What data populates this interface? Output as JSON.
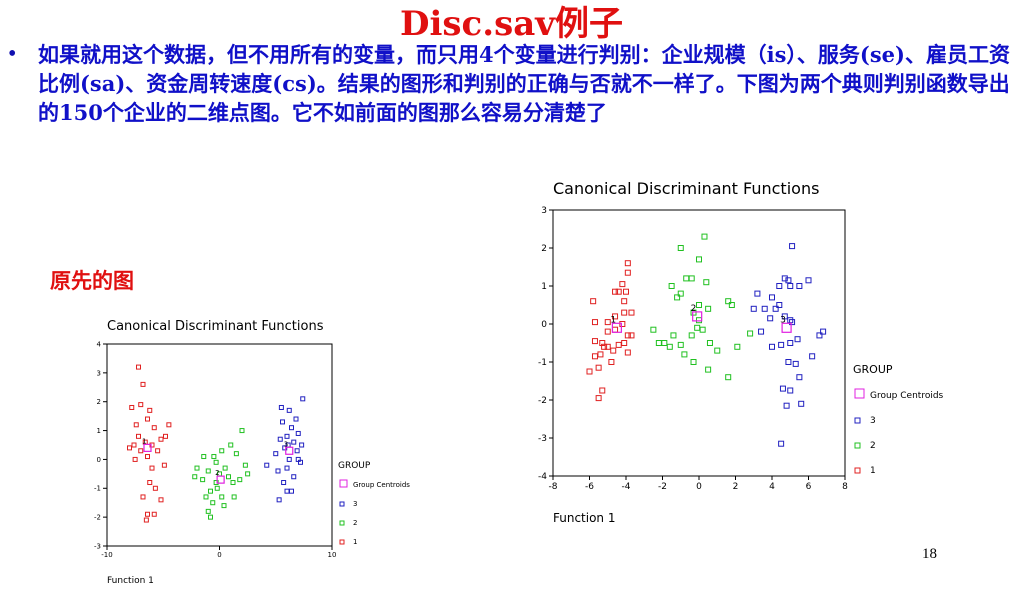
{
  "slide": {
    "title": "Disc.sav例子",
    "bullet": "•",
    "text": "如果就用这个数据，但不用所有的变量，而只用4个变量进行判别：企业规模（is）、服务(se)、雇员工资比例(sa)、资金周转速度(cs)。结果的图形和判别的正确与否就不一样了。下图为两个典则判别函数导出的150个企业的二维点图。它不如前面的图那么容易分清楚了",
    "original_label": "原先的图",
    "page_number": "18"
  },
  "colors": {
    "group1": "#e02020",
    "group2": "#20c020",
    "group3": "#2020c0",
    "centroid": "#e020e0",
    "title": "#e01010",
    "text": "#1010c8"
  },
  "chart_data": [
    {
      "type": "scatter",
      "title": "Canonical Discriminant Functions",
      "xlabel": "Function 1",
      "ylabel": "",
      "xlim": [
        -10,
        10
      ],
      "ylim": [
        -3,
        4
      ],
      "xticks": [
        -10,
        0,
        10
      ],
      "yticks": [
        -3,
        -2,
        -1,
        0,
        1,
        2,
        3,
        4
      ],
      "legend_title": "GROUP",
      "legend": [
        "Group Centroids",
        "3",
        "2",
        "1"
      ],
      "series": [
        {
          "name": "1",
          "points": [
            [
              -7.2,
              3.2
            ],
            [
              -6.8,
              2.6
            ],
            [
              -7.8,
              1.8
            ],
            [
              -7.0,
              1.9
            ],
            [
              -6.2,
              1.7
            ],
            [
              -7.4,
              1.2
            ],
            [
              -6.4,
              1.4
            ],
            [
              -5.8,
              1.1
            ],
            [
              -7.2,
              0.8
            ],
            [
              -6.6,
              0.6
            ],
            [
              -6.0,
              0.5
            ],
            [
              -5.2,
              0.7
            ],
            [
              -8.0,
              0.4
            ],
            [
              -7.0,
              0.3
            ],
            [
              -6.4,
              0.1
            ],
            [
              -5.5,
              0.3
            ],
            [
              -7.5,
              0.0
            ],
            [
              -6.0,
              -0.3
            ],
            [
              -4.9,
              -0.2
            ],
            [
              -6.2,
              -0.8
            ],
            [
              -5.7,
              -1.0
            ],
            [
              -6.8,
              -1.3
            ],
            [
              -5.2,
              -1.4
            ],
            [
              -6.4,
              -1.9
            ],
            [
              -5.8,
              -1.9
            ],
            [
              -6.5,
              -2.1
            ],
            [
              -4.8,
              0.8
            ],
            [
              -4.5,
              1.2
            ],
            [
              -7.6,
              0.5
            ]
          ]
        },
        {
          "name": "2",
          "points": [
            [
              2.0,
              1.0
            ],
            [
              1.0,
              0.5
            ],
            [
              0.2,
              0.3
            ],
            [
              -1.4,
              0.1
            ],
            [
              -0.5,
              0.1
            ],
            [
              1.5,
              0.2
            ],
            [
              -2.0,
              -0.3
            ],
            [
              -1.0,
              -0.4
            ],
            [
              0.5,
              -0.3
            ],
            [
              2.3,
              -0.2
            ],
            [
              -1.5,
              -0.7
            ],
            [
              -0.3,
              -0.8
            ],
            [
              0.8,
              -0.6
            ],
            [
              1.8,
              -0.7
            ],
            [
              -2.2,
              -0.6
            ],
            [
              -0.8,
              -1.1
            ],
            [
              0.2,
              -1.3
            ],
            [
              1.3,
              -1.3
            ],
            [
              -0.6,
              -1.5
            ],
            [
              0.4,
              -1.6
            ],
            [
              -1.0,
              -1.8
            ],
            [
              -0.8,
              -2.0
            ],
            [
              -0.2,
              -1.0
            ],
            [
              1.2,
              -0.8
            ],
            [
              -1.2,
              -1.3
            ],
            [
              0.0,
              -0.5
            ],
            [
              2.5,
              -0.5
            ],
            [
              -0.3,
              -0.1
            ]
          ]
        },
        {
          "name": "3",
          "points": [
            [
              7.4,
              2.1
            ],
            [
              5.5,
              1.8
            ],
            [
              6.2,
              1.7
            ],
            [
              6.8,
              1.4
            ],
            [
              5.6,
              1.3
            ],
            [
              6.4,
              1.1
            ],
            [
              7.0,
              0.9
            ],
            [
              6.0,
              0.8
            ],
            [
              5.4,
              0.7
            ],
            [
              6.6,
              0.6
            ],
            [
              7.3,
              0.5
            ],
            [
              5.8,
              0.4
            ],
            [
              6.9,
              0.3
            ],
            [
              5.0,
              0.2
            ],
            [
              6.2,
              0.0
            ],
            [
              7.2,
              -0.1
            ],
            [
              4.2,
              -0.2
            ],
            [
              6.0,
              -0.3
            ],
            [
              5.2,
              -0.4
            ],
            [
              6.6,
              -0.6
            ],
            [
              5.7,
              -0.8
            ],
            [
              6.4,
              -1.1
            ],
            [
              6.0,
              -1.1
            ],
            [
              5.3,
              -1.4
            ],
            [
              7.0,
              0.0
            ],
            [
              6.1,
              0.5
            ]
          ]
        },
        {
          "name": "Group Centroids",
          "points": [
            [
              -6.4,
              0.4
            ],
            [
              0.1,
              -0.7
            ],
            [
              6.2,
              0.3
            ]
          ],
          "labels": [
            "1",
            "2",
            "3"
          ]
        }
      ]
    },
    {
      "type": "scatter",
      "title": "Canonical Discriminant Functions",
      "xlabel": "Function 1",
      "ylabel": "",
      "xlim": [
        -8,
        8
      ],
      "ylim": [
        -4,
        3
      ],
      "xticks": [
        -8,
        -6,
        -4,
        -2,
        0,
        2,
        4,
        6,
        8
      ],
      "yticks": [
        -4,
        -3,
        -2,
        -1,
        0,
        1,
        2,
        3
      ],
      "legend_title": "GROUP",
      "legend": [
        "Group Centroids",
        "3",
        "2",
        "1"
      ],
      "series": [
        {
          "name": "1",
          "points": [
            [
              -3.9,
              1.6
            ],
            [
              -3.9,
              1.35
            ],
            [
              -4.2,
              1.05
            ],
            [
              -4.0,
              0.85
            ],
            [
              -4.4,
              0.85
            ],
            [
              -4.6,
              0.85
            ],
            [
              -4.1,
              0.6
            ],
            [
              -5.8,
              0.6
            ],
            [
              -3.7,
              0.3
            ],
            [
              -4.1,
              0.3
            ],
            [
              -4.6,
              0.2
            ],
            [
              -5.0,
              0.05
            ],
            [
              -5.7,
              0.05
            ],
            [
              -4.2,
              0.0
            ],
            [
              -4.6,
              -0.15
            ],
            [
              -5.0,
              -0.2
            ],
            [
              -3.9,
              -0.3
            ],
            [
              -3.7,
              -0.3
            ],
            [
              -5.7,
              -0.45
            ],
            [
              -4.1,
              -0.5
            ],
            [
              -5.3,
              -0.5
            ],
            [
              -4.4,
              -0.55
            ],
            [
              -5.0,
              -0.6
            ],
            [
              -5.2,
              -0.6
            ],
            [
              -4.7,
              -0.7
            ],
            [
              -3.9,
              -0.75
            ],
            [
              -5.4,
              -0.8
            ],
            [
              -5.7,
              -0.85
            ],
            [
              -4.8,
              -1.0
            ],
            [
              -5.5,
              -1.15
            ],
            [
              -6.0,
              -1.25
            ],
            [
              -5.3,
              -1.75
            ],
            [
              -5.5,
              -1.95
            ]
          ]
        },
        {
          "name": "2",
          "points": [
            [
              0.3,
              2.3
            ],
            [
              -1.0,
              2.0
            ],
            [
              0.0,
              1.7
            ],
            [
              -0.7,
              1.2
            ],
            [
              -0.4,
              1.2
            ],
            [
              0.4,
              1.1
            ],
            [
              -1.5,
              1.0
            ],
            [
              -1.0,
              0.8
            ],
            [
              -1.2,
              0.7
            ],
            [
              1.6,
              0.6
            ],
            [
              1.8,
              0.5
            ],
            [
              0.0,
              0.5
            ],
            [
              0.5,
              0.4
            ],
            [
              -0.3,
              0.3
            ],
            [
              0.0,
              0.1
            ],
            [
              -2.5,
              -0.15
            ],
            [
              -0.1,
              -0.1
            ],
            [
              0.2,
              -0.15
            ],
            [
              2.8,
              -0.25
            ],
            [
              -0.4,
              -0.3
            ],
            [
              -1.4,
              -0.3
            ],
            [
              -2.2,
              -0.5
            ],
            [
              0.6,
              -0.5
            ],
            [
              -1.0,
              -0.55
            ],
            [
              2.1,
              -0.6
            ],
            [
              -1.6,
              -0.6
            ],
            [
              1.0,
              -0.7
            ],
            [
              -0.8,
              -0.8
            ],
            [
              -0.3,
              -1.0
            ],
            [
              0.5,
              -1.2
            ],
            [
              1.6,
              -1.4
            ],
            [
              -1.9,
              -0.5
            ]
          ]
        },
        {
          "name": "3",
          "points": [
            [
              5.1,
              2.05
            ],
            [
              4.7,
              1.2
            ],
            [
              4.9,
              1.15
            ],
            [
              6.0,
              1.15
            ],
            [
              5.5,
              1.0
            ],
            [
              4.4,
              1.0
            ],
            [
              5.0,
              1.0
            ],
            [
              3.2,
              0.8
            ],
            [
              4.0,
              0.7
            ],
            [
              4.4,
              0.5
            ],
            [
              3.6,
              0.4
            ],
            [
              3.0,
              0.4
            ],
            [
              4.2,
              0.4
            ],
            [
              4.7,
              0.2
            ],
            [
              3.9,
              0.15
            ],
            [
              5.0,
              0.1
            ],
            [
              5.1,
              0.05
            ],
            [
              6.8,
              -0.2
            ],
            [
              3.4,
              -0.2
            ],
            [
              6.6,
              -0.3
            ],
            [
              5.4,
              -0.4
            ],
            [
              4.5,
              -0.55
            ],
            [
              4.0,
              -0.6
            ],
            [
              5.0,
              -0.5
            ],
            [
              6.2,
              -0.85
            ],
            [
              4.9,
              -1.0
            ],
            [
              5.3,
              -1.05
            ],
            [
              5.5,
              -1.4
            ],
            [
              4.6,
              -1.7
            ],
            [
              5.0,
              -1.75
            ],
            [
              5.6,
              -2.1
            ],
            [
              4.8,
              -2.15
            ],
            [
              4.5,
              -3.15
            ]
          ]
        },
        {
          "name": "Group Centroids",
          "points": [
            [
              -4.5,
              -0.1
            ],
            [
              -0.1,
              0.2
            ],
            [
              4.8,
              -0.1
            ]
          ],
          "labels": [
            "1",
            "2",
            "3"
          ]
        }
      ]
    }
  ]
}
